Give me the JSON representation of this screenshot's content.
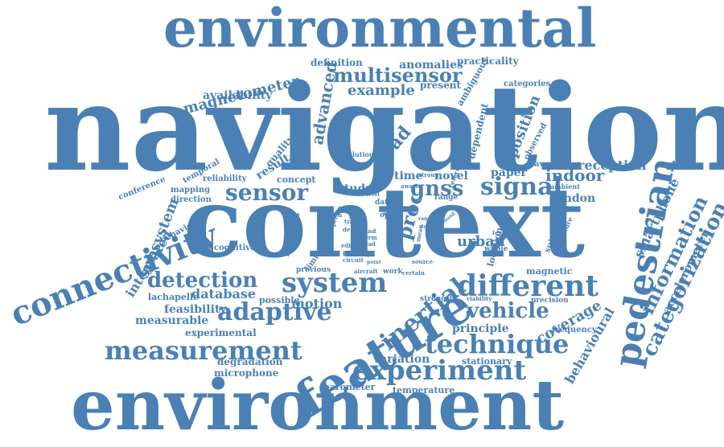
{
  "colors": {
    "word": "#4a80b4",
    "background": "#ffffff"
  },
  "words": [
    "environmental",
    "navigation",
    "context",
    "environment",
    "connectivity",
    "feature",
    "pedestrian",
    "technique",
    "experiment",
    "measurement",
    "adaptive",
    "system",
    "detection",
    "different",
    "sensor",
    "signal",
    "gnss",
    "multisensor",
    "example",
    "magnetometer",
    "availability",
    "advanced",
    "road",
    "position",
    "categorization",
    "information",
    "smartphone",
    "accelerometer",
    "indoor",
    "reception",
    "london",
    "paper",
    "novel",
    "time",
    "study",
    "vehicle",
    "inertial",
    "coverage",
    "behavioural",
    "frequency",
    "principle",
    "urban",
    "proc",
    "integrated",
    "subsystem",
    "database",
    "feasibility",
    "measurable",
    "experimental",
    "degradation",
    "microphone",
    "barometer",
    "temperature",
    "variation",
    "stationary",
    "motion",
    "possible",
    "lachapelle",
    "cognitive",
    "behaviour",
    "conference",
    "temporal",
    "mapping",
    "direction",
    "reliability",
    "quality",
    "result",
    "concept",
    "robust",
    "solution",
    "definition",
    "anomalies",
    "practicality",
    "categories",
    "present",
    "ambiguous",
    "dependent",
    "observed",
    "awareness",
    "ambient",
    "magnetic",
    "precision",
    "strength",
    "viability",
    "texture",
    "suitable",
    "literature",
    "whole",
    "location",
    "range",
    "data",
    "train",
    "detect",
    "band",
    "term",
    "dead",
    "design",
    "house",
    "circuit",
    "individual",
    "limited",
    "previous",
    "aircraft",
    "work",
    "certain",
    "artech",
    "open",
    "person",
    "edition",
    "point",
    "sign",
    "light",
    "aware",
    "strong",
    "level",
    "reference",
    "round",
    "source",
    "mean",
    "value",
    "range",
    "drift"
  ]
}
